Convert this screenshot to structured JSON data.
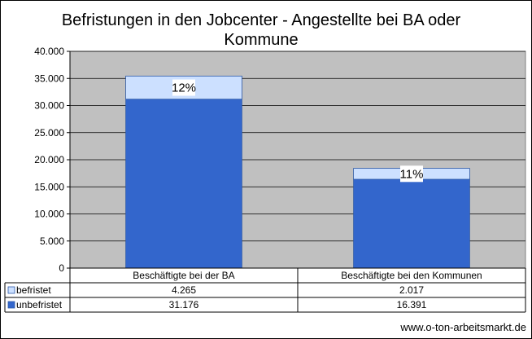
{
  "chart_data": {
    "type": "bar",
    "stacked": true,
    "title": "Befristungen in den Jobcenter - Angestellte bei BA oder Kommune",
    "categories": [
      "Beschäftigte bei der BA",
      "Beschäftigte bei den Kommunen"
    ],
    "series": [
      {
        "name": "unbefristet",
        "values": [
          31176,
          16391
        ],
        "values_display": [
          "31.176",
          "16.391"
        ],
        "color": "#3366CC"
      },
      {
        "name": "befristet",
        "values": [
          4265,
          2017
        ],
        "values_display": [
          "4.265",
          "2.017"
        ],
        "color": "#CCE0FF"
      }
    ],
    "data_labels": [
      "12%",
      "11%"
    ],
    "ylim": [
      0,
      40000
    ],
    "yticks": [
      0,
      5000,
      10000,
      15000,
      20000,
      25000,
      30000,
      35000,
      40000
    ],
    "ytick_labels": [
      "0",
      "5.000",
      "10.000",
      "15.000",
      "20.000",
      "25.000",
      "30.000",
      "35.000",
      "40.000"
    ],
    "grid": true,
    "legend": "data-table",
    "plot_background": "#C0C0C0"
  },
  "footer": "www.o-ton-arbeitsmarkt.de"
}
